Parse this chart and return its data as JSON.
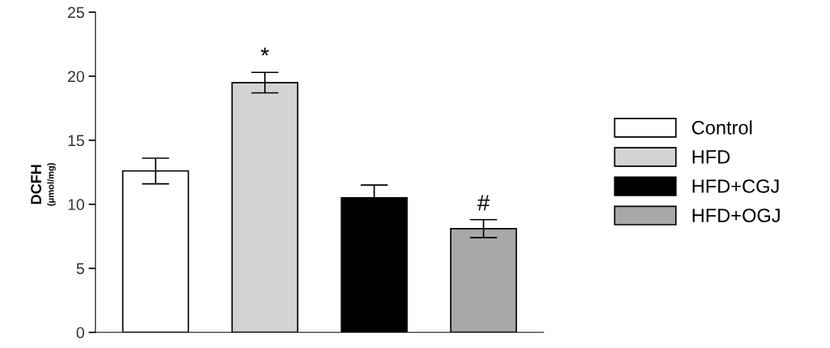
{
  "chart_data": {
    "type": "bar",
    "ylabel": "DCFH\n(μmol/mg)",
    "categories": [
      null,
      null,
      null,
      null
    ],
    "series": [
      {
        "name": "Control",
        "color": "#ffffff",
        "values": [
          12.6,
          null,
          null,
          null
        ],
        "errors": [
          1.0,
          null,
          null,
          null
        ]
      },
      {
        "name": "HFD",
        "color": "#d3d3d3",
        "values": [
          null,
          19.5,
          null,
          null
        ],
        "errors": [
          null,
          0.8,
          null,
          null
        ]
      },
      {
        "name": "HFD+CGJ",
        "color": "#000000",
        "values": [
          null,
          null,
          10.5,
          null
        ],
        "errors": [
          null,
          null,
          1.0,
          null
        ]
      },
      {
        "name": "HFD+OGJ",
        "color": "#a8a8a8",
        "values": [
          null,
          null,
          null,
          8.1
        ],
        "errors": [
          null,
          null,
          null,
          0.7
        ]
      }
    ],
    "annotations": [
      "*",
      "#"
    ],
    "ylim": [
      0,
      25
    ],
    "yticks": [
      0,
      5,
      10,
      15,
      20,
      25
    ],
    "grid": false,
    "legend": "right"
  }
}
